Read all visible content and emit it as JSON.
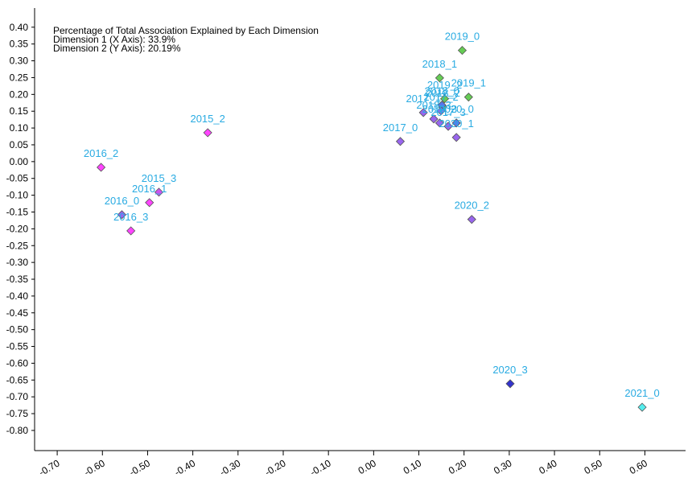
{
  "chart_data": {
    "type": "scatter",
    "annotations": [
      "Percentage of Total Association Explained by Each Dimension",
      "Dimension 1 (X Axis): 33.9%",
      "Dimension 2 (Y Axis): 20.19%"
    ],
    "xlim": [
      -0.75,
      0.69
    ],
    "ylim": [
      -0.86,
      0.457
    ],
    "xticks": [
      {
        "value": -0.7,
        "label": "-0.70"
      },
      {
        "value": -0.6,
        "label": "-0.60"
      },
      {
        "value": -0.5,
        "label": "-0.50"
      },
      {
        "value": -0.4,
        "label": "-0.40"
      },
      {
        "value": -0.3,
        "label": "-0.30"
      },
      {
        "value": -0.2,
        "label": "-0.20"
      },
      {
        "value": -0.1,
        "label": "-0.10"
      },
      {
        "value": 0,
        "label": "0.00"
      },
      {
        "value": 0.1,
        "label": "0.10"
      },
      {
        "value": 0.2,
        "label": "0.20"
      },
      {
        "value": 0.3,
        "label": "0.30"
      },
      {
        "value": 0.4,
        "label": "0.40"
      },
      {
        "value": 0.5,
        "label": "0.50"
      },
      {
        "value": 0.6,
        "label": "0.60"
      }
    ],
    "yticks": [
      {
        "value": 0.4,
        "label": "0.40"
      },
      {
        "value": 0.35,
        "label": "0.35"
      },
      {
        "value": 0.3,
        "label": "0.30"
      },
      {
        "value": 0.25,
        "label": "0.25"
      },
      {
        "value": 0.2,
        "label": "0.20"
      },
      {
        "value": 0.15,
        "label": "0.15"
      },
      {
        "value": 0.1,
        "label": "0.10"
      },
      {
        "value": 0.05,
        "label": "0.05"
      },
      {
        "value": 0,
        "label": "0.00"
      },
      {
        "value": -0.05,
        "label": "-0.05"
      },
      {
        "value": -0.1,
        "label": "-0.10"
      },
      {
        "value": -0.15,
        "label": "-0.15"
      },
      {
        "value": -0.2,
        "label": "-0.20"
      },
      {
        "value": -0.25,
        "label": "-0.25"
      },
      {
        "value": -0.3,
        "label": "-0.30"
      },
      {
        "value": -0.35,
        "label": "-0.35"
      },
      {
        "value": -0.4,
        "label": "-0.40"
      },
      {
        "value": -0.45,
        "label": "-0.45"
      },
      {
        "value": -0.5,
        "label": "-0.50"
      },
      {
        "value": -0.55,
        "label": "-0.55"
      },
      {
        "value": -0.6,
        "label": "-0.60"
      },
      {
        "value": -0.65,
        "label": "-0.65"
      },
      {
        "value": -0.7,
        "label": "-0.70"
      },
      {
        "value": -0.75,
        "label": "-0.75"
      },
      {
        "value": -0.8,
        "label": "-0.80"
      }
    ],
    "point_labels": [
      "2019_0",
      "2018_1",
      "2019_1",
      "2019_2",
      "2018_2",
      "2017_1",
      "2018_0",
      "2017_2",
      "2018_3",
      "2019_3",
      "2017_3",
      "2020_0",
      "2020_1",
      "2017_0",
      "2015_2",
      "2016_2",
      "2015_3",
      "2016_1",
      "2016_0",
      "2016_3",
      "2020_2",
      "2020_3",
      "2021_0"
    ],
    "x": [
      0.196,
      0.146,
      0.21,
      0.157,
      0.153,
      0.11,
      0.151,
      0.149,
      0.133,
      0.146,
      0.165,
      0.183,
      0.183,
      0.059,
      -0.367,
      -0.603,
      -0.475,
      -0.496,
      -0.557,
      -0.537,
      0.217,
      0.302,
      0.594
    ],
    "values": [
      0.331,
      0.249,
      0.192,
      0.187,
      0.163,
      0.146,
      0.168,
      0.151,
      0.127,
      0.115,
      0.105,
      0.115,
      0.072,
      0.06,
      0.086,
      -0.017,
      -0.091,
      -0.122,
      -0.158,
      -0.206,
      -0.172,
      -0.661,
      -0.731
    ],
    "colors": [
      "#66cc55",
      "#66cc55",
      "#66cc55",
      "#66cc55",
      "#66cc55",
      "#9966ee",
      "#5577ee",
      "#9966ee",
      "#9966ee",
      "#9966ee",
      "#9966ee",
      "#5577ee",
      "#9966ee",
      "#9966ee",
      "#ff44ff",
      "#ff44ff",
      "#cc55ee",
      "#ff44ff",
      "#9966ee",
      "#ff44ff",
      "#9966ee",
      "#3333cc",
      "#55eeee"
    ],
    "label_color": "#29abe2"
  }
}
